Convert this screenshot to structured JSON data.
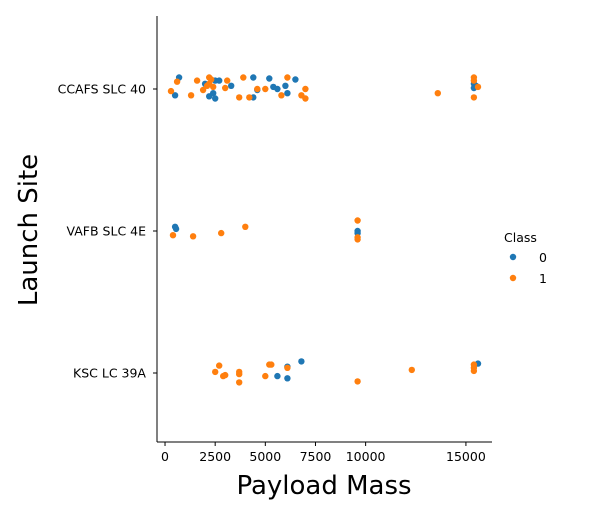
{
  "chart_data": {
    "type": "scatter",
    "xlabel": "Payload Mass",
    "ylabel": "Launch Site",
    "categories": [
      "CCAFS SLC 40",
      "VAFB SLC 4E",
      "KSC LC 39A"
    ],
    "x_ticks": [
      0,
      2500,
      5000,
      7500,
      10000,
      15000
    ],
    "x_tick_labels": [
      "0",
      "2500",
      "5000",
      "7500",
      "10000",
      "15000"
    ],
    "xlim": [
      -400,
      16300
    ],
    "grid": false,
    "legend": {
      "title": "Class",
      "placement": "right",
      "entries": [
        {
          "label": "0",
          "color": "#1f77b4"
        },
        {
          "label": "1",
          "color": "#ff7f0e"
        }
      ]
    },
    "series": [
      {
        "name": "0",
        "color": "#1f77b4",
        "points": [
          {
            "x": 700,
            "y": "CCAFS SLC 40",
            "j": 0.11
          },
          {
            "x": 2000,
            "y": "CCAFS SLC 40",
            "j": 0.05
          },
          {
            "x": 2500,
            "y": "CCAFS SLC 40",
            "j": 0.08
          },
          {
            "x": 2700,
            "y": "CCAFS SLC 40",
            "j": 0.08
          },
          {
            "x": 3300,
            "y": "CCAFS SLC 40",
            "j": 0.03
          },
          {
            "x": 4400,
            "y": "CCAFS SLC 40",
            "j": 0.11
          },
          {
            "x": 5200,
            "y": "CCAFS SLC 40",
            "j": 0.1
          },
          {
            "x": 5400,
            "y": "CCAFS SLC 40",
            "j": 0.02
          },
          {
            "x": 6000,
            "y": "CCAFS SLC 40",
            "j": 0.03
          },
          {
            "x": 6500,
            "y": "CCAFS SLC 40",
            "j": 0.09
          },
          {
            "x": 500,
            "y": "CCAFS SLC 40",
            "j": -0.06
          },
          {
            "x": 2200,
            "y": "CCAFS SLC 40",
            "j": -0.07
          },
          {
            "x": 2400,
            "y": "CCAFS SLC 40",
            "j": -0.04
          },
          {
            "x": 2500,
            "y": "CCAFS SLC 40",
            "j": -0.09
          },
          {
            "x": 4400,
            "y": "CCAFS SLC 40",
            "j": -0.08
          },
          {
            "x": 4600,
            "y": "CCAFS SLC 40",
            "j": -0.01
          },
          {
            "x": 5600,
            "y": "CCAFS SLC 40",
            "j": 0.0
          },
          {
            "x": 6100,
            "y": "CCAFS SLC 40",
            "j": -0.04
          },
          {
            "x": 15400,
            "y": "CCAFS SLC 40",
            "j": 0.05
          },
          {
            "x": 15500,
            "y": "CCAFS SLC 40",
            "j": 0.03
          },
          {
            "x": 15400,
            "y": "CCAFS SLC 40",
            "j": 0.01
          },
          {
            "x": 500,
            "y": "VAFB SLC 4E",
            "j": 0.04
          },
          {
            "x": 550,
            "y": "VAFB SLC 4E",
            "j": 0.02
          },
          {
            "x": 9600,
            "y": "VAFB SLC 4E",
            "j": 0.0
          },
          {
            "x": 9600,
            "y": "VAFB SLC 4E",
            "j": -0.02
          },
          {
            "x": 6800,
            "y": "KSC LC 39A",
            "j": 0.11
          },
          {
            "x": 6100,
            "y": "KSC LC 39A",
            "j": 0.06
          },
          {
            "x": 5600,
            "y": "KSC LC 39A",
            "j": -0.03
          },
          {
            "x": 6100,
            "y": "KSC LC 39A",
            "j": -0.05
          },
          {
            "x": 15600,
            "y": "KSC LC 39A",
            "j": 0.09
          }
        ]
      },
      {
        "name": "1",
        "color": "#ff7f0e",
        "points": [
          {
            "x": 2200,
            "y": "CCAFS SLC 40",
            "j": 0.11
          },
          {
            "x": 3900,
            "y": "CCAFS SLC 40",
            "j": 0.11
          },
          {
            "x": 6100,
            "y": "CCAFS SLC 40",
            "j": 0.11
          },
          {
            "x": 1600,
            "y": "CCAFS SLC 40",
            "j": 0.08
          },
          {
            "x": 2300,
            "y": "CCAFS SLC 40",
            "j": 0.09
          },
          {
            "x": 3100,
            "y": "CCAFS SLC 40",
            "j": 0.08
          },
          {
            "x": 600,
            "y": "CCAFS SLC 40",
            "j": 0.07
          },
          {
            "x": 2200,
            "y": "CCAFS SLC 40",
            "j": 0.05
          },
          {
            "x": 2100,
            "y": "CCAFS SLC 40",
            "j": 0.03
          },
          {
            "x": 2400,
            "y": "CCAFS SLC 40",
            "j": 0.02
          },
          {
            "x": 3000,
            "y": "CCAFS SLC 40",
            "j": 0.01
          },
          {
            "x": 1900,
            "y": "CCAFS SLC 40",
            "j": -0.01
          },
          {
            "x": 4600,
            "y": "CCAFS SLC 40",
            "j": 0.0
          },
          {
            "x": 5000,
            "y": "CCAFS SLC 40",
            "j": 0.0
          },
          {
            "x": 7000,
            "y": "CCAFS SLC 40",
            "j": 0.0
          },
          {
            "x": 300,
            "y": "CCAFS SLC 40",
            "j": -0.02
          },
          {
            "x": 1300,
            "y": "CCAFS SLC 40",
            "j": -0.06
          },
          {
            "x": 3700,
            "y": "CCAFS SLC 40",
            "j": -0.08
          },
          {
            "x": 5800,
            "y": "CCAFS SLC 40",
            "j": -0.06
          },
          {
            "x": 6800,
            "y": "CCAFS SLC 40",
            "j": -0.06
          },
          {
            "x": 7000,
            "y": "CCAFS SLC 40",
            "j": -0.09
          },
          {
            "x": 4200,
            "y": "CCAFS SLC 40",
            "j": -0.08
          },
          {
            "x": 13600,
            "y": "CCAFS SLC 40",
            "j": -0.04
          },
          {
            "x": 15400,
            "y": "CCAFS SLC 40",
            "j": 0.11
          },
          {
            "x": 15400,
            "y": "CCAFS SLC 40",
            "j": 0.08
          },
          {
            "x": 15600,
            "y": "CCAFS SLC 40",
            "j": 0.02
          },
          {
            "x": 15400,
            "y": "CCAFS SLC 40",
            "j": -0.08
          },
          {
            "x": 4000,
            "y": "VAFB SLC 4E",
            "j": 0.04
          },
          {
            "x": 400,
            "y": "VAFB SLC 4E",
            "j": -0.04
          },
          {
            "x": 1400,
            "y": "VAFB SLC 4E",
            "j": -0.05
          },
          {
            "x": 2800,
            "y": "VAFB SLC 4E",
            "j": -0.02
          },
          {
            "x": 9600,
            "y": "VAFB SLC 4E",
            "j": 0.1
          },
          {
            "x": 9600,
            "y": "VAFB SLC 4E",
            "j": -0.06
          },
          {
            "x": 9600,
            "y": "VAFB SLC 4E",
            "j": -0.08
          },
          {
            "x": 2700,
            "y": "KSC LC 39A",
            "j": 0.07
          },
          {
            "x": 5200,
            "y": "KSC LC 39A",
            "j": 0.08
          },
          {
            "x": 5300,
            "y": "KSC LC 39A",
            "j": 0.08
          },
          {
            "x": 2500,
            "y": "KSC LC 39A",
            "j": 0.01
          },
          {
            "x": 3700,
            "y": "KSC LC 39A",
            "j": 0.01
          },
          {
            "x": 6100,
            "y": "KSC LC 39A",
            "j": 0.05
          },
          {
            "x": 3000,
            "y": "KSC LC 39A",
            "j": -0.02
          },
          {
            "x": 2900,
            "y": "KSC LC 39A",
            "j": -0.03
          },
          {
            "x": 3700,
            "y": "KSC LC 39A",
            "j": -0.01
          },
          {
            "x": 5000,
            "y": "KSC LC 39A",
            "j": -0.03
          },
          {
            "x": 3700,
            "y": "KSC LC 39A",
            "j": -0.09
          },
          {
            "x": 9600,
            "y": "KSC LC 39A",
            "j": -0.08
          },
          {
            "x": 12300,
            "y": "KSC LC 39A",
            "j": 0.03
          },
          {
            "x": 15400,
            "y": "KSC LC 39A",
            "j": 0.08
          },
          {
            "x": 15400,
            "y": "KSC LC 39A",
            "j": 0.05
          },
          {
            "x": 15400,
            "y": "KSC LC 39A",
            "j": 0.02
          }
        ]
      }
    ]
  }
}
